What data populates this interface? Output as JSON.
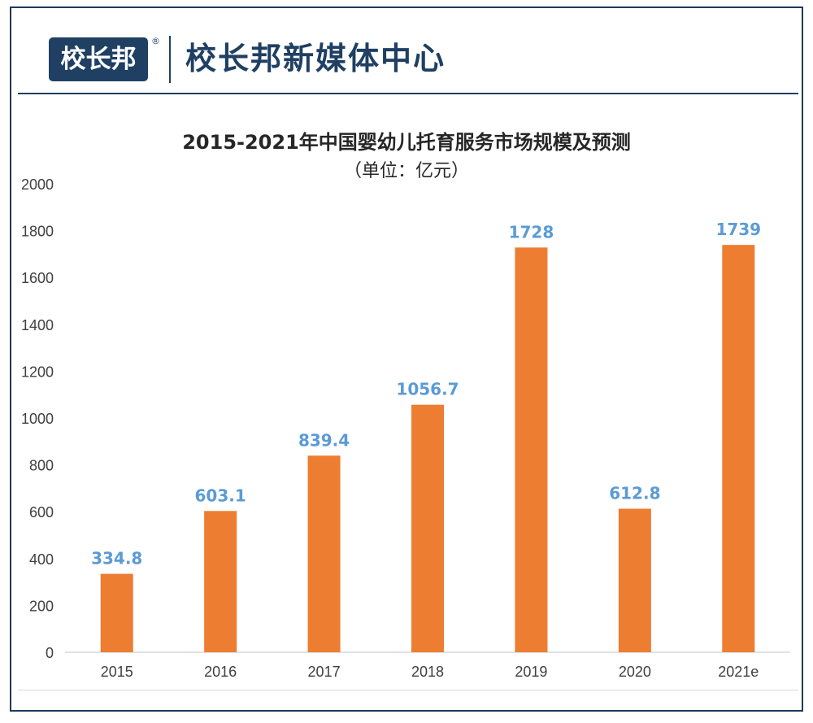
{
  "header": {
    "logo_text": "校长邦",
    "registered_mark": "®",
    "brand_title": "校长邦新媒体中心"
  },
  "colors": {
    "bar": "#ED7D31",
    "data_label": "#5B9BD5",
    "brand": "#1F3F63",
    "axis_text": "#404040"
  },
  "chart_data": {
    "type": "bar",
    "title": "2015-2021年中国婴幼儿托育服务市场规模及预测",
    "subtitle": "（单位：亿元）",
    "categories": [
      "2015",
      "2016",
      "2017",
      "2018",
      "2019",
      "2020",
      "2021e"
    ],
    "values": [
      334.8,
      603.1,
      839.4,
      1056.7,
      1728,
      612.8,
      1739
    ],
    "value_labels": [
      "334.8",
      "603.1",
      "839.4",
      "1056.7",
      "1728",
      "612.8",
      "1739"
    ],
    "yticks": [
      "0",
      "200",
      "400",
      "600",
      "800",
      "1000",
      "1200",
      "1400",
      "1600",
      "1800",
      "2000"
    ],
    "ylim": [
      0,
      2000
    ],
    "grid": false,
    "legend": "none"
  }
}
